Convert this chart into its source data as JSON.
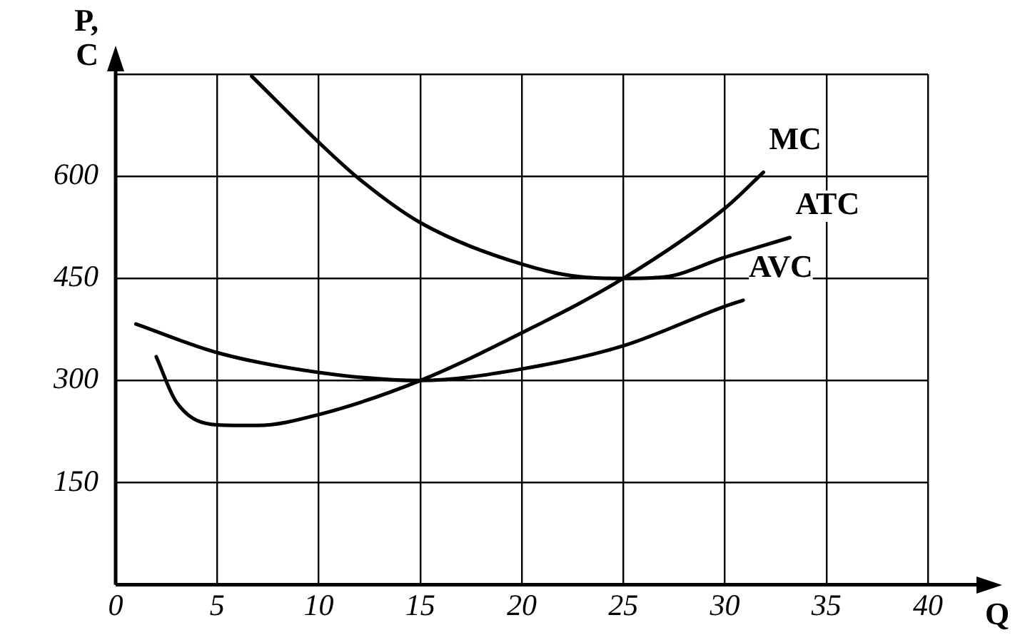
{
  "chart_data": {
    "type": "line",
    "xlabel": "Q",
    "ylabel": "P, C",
    "xlim": [
      0,
      40
    ],
    "xticks": [
      0,
      5,
      10,
      15,
      20,
      25,
      30,
      35,
      40
    ],
    "ylim": [
      0,
      750
    ],
    "yticks": [
      {
        "value": 0,
        "label": null
      },
      150,
      300,
      450,
      600,
      {
        "value": 750,
        "label": null
      }
    ],
    "grid": true,
    "legend": false,
    "marker": "none",
    "line_style": "solid",
    "series": [
      {
        "name": "MC",
        "color": "#000000",
        "x": [
          2,
          3,
          5,
          7,
          10,
          15,
          20,
          25,
          30,
          31.9
        ],
        "values": [
          335,
          268,
          235,
          234,
          250,
          300,
          370,
          450,
          553,
          606
        ]
      },
      {
        "name": "ATC",
        "color": "#000000",
        "x": [
          6.7,
          10,
          12,
          15,
          20,
          23,
          25,
          27,
          30,
          33.2
        ],
        "values": [
          747,
          650,
          596,
          532,
          471,
          452,
          450,
          452,
          481,
          510
        ]
      },
      {
        "name": "AVC",
        "color": "#000000",
        "x": [
          1,
          5,
          10,
          15,
          20,
          25,
          30,
          30.9
        ],
        "values": [
          383,
          341,
          312,
          300,
          317,
          351,
          409,
          418
        ]
      }
    ]
  }
}
